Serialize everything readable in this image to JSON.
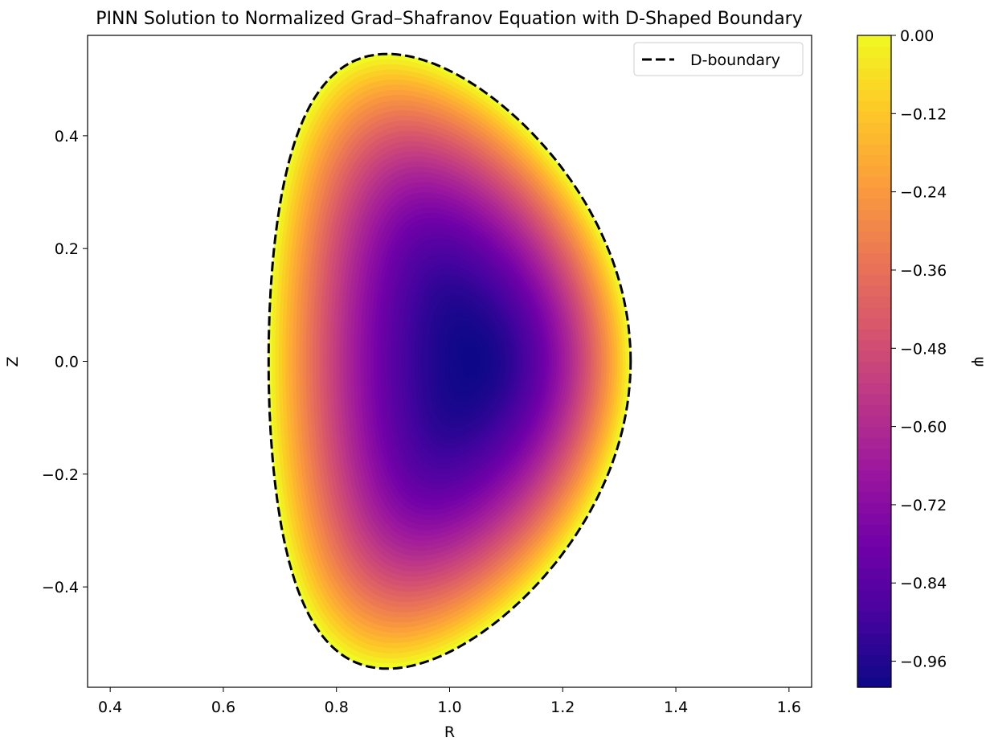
{
  "chart_data": {
    "type": "heatmap",
    "title": "PINN Solution to Normalized Grad–Shafranov Equation with D-Shaped Boundary",
    "xlabel": "R",
    "ylabel": "Z",
    "xlim": [
      0.36,
      1.64
    ],
    "ylim": [
      -0.578,
      0.578
    ],
    "xticks": [
      0.4,
      0.6,
      0.8,
      1.0,
      1.2,
      1.4,
      1.6
    ],
    "xtick_labels": [
      "0.4",
      "0.6",
      "0.8",
      "1.0",
      "1.2",
      "1.4",
      "1.6"
    ],
    "yticks": [
      -0.4,
      -0.2,
      0.0,
      0.2,
      0.4
    ],
    "ytick_labels": [
      "−0.4",
      "−0.2",
      "0.0",
      "0.2",
      "0.4"
    ],
    "colormap": "plasma",
    "colormap_stops": [
      "#0d0887",
      "#46039f",
      "#7201a8",
      "#9c179e",
      "#bd3786",
      "#d8576b",
      "#ed7953",
      "#fb9f3a",
      "#fdca26",
      "#f0f921"
    ],
    "field": {
      "name": "ψ",
      "min": -1.0,
      "max": 0.0,
      "minimum_location": {
        "R": 1.04,
        "Z": 0.0
      },
      "boundary_value": 0.0
    },
    "boundary": {
      "name": "D-boundary",
      "style": "dashed",
      "color": "#000000",
      "R_min": 0.68,
      "R_max": 1.32,
      "Z_max": 0.545,
      "R_at_Z_max": 0.89
    },
    "legend": {
      "entries": [
        "D-boundary"
      ],
      "position": "upper right"
    },
    "colorbar": {
      "label": "ψ",
      "range": [
        -1.0,
        0.0
      ],
      "ticks": [
        0.0,
        -0.12,
        -0.24,
        -0.36,
        -0.48,
        -0.6,
        -0.72,
        -0.84,
        -0.96
      ],
      "tick_labels": [
        "0.00",
        "−0.12",
        "−0.24",
        "−0.36",
        "−0.48",
        "−0.60",
        "−0.72",
        "−0.84",
        "−0.96"
      ],
      "levels": 60
    }
  }
}
